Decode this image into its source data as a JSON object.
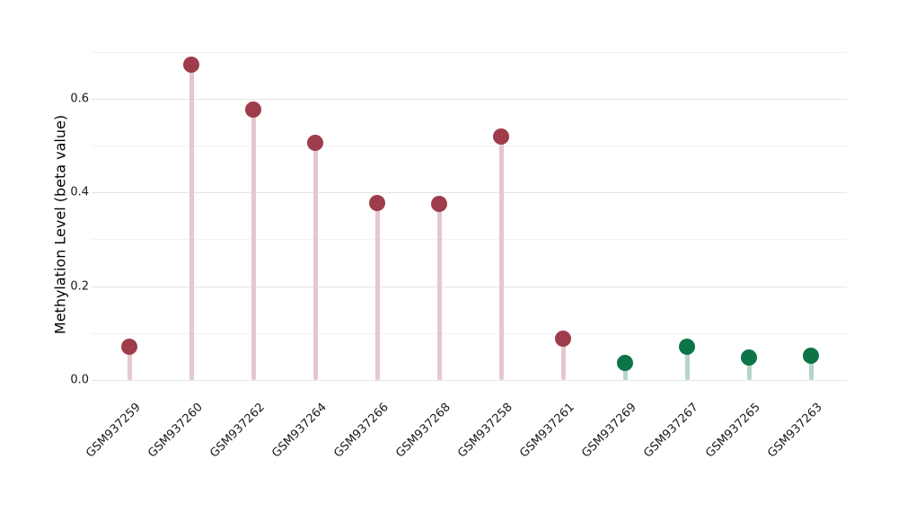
{
  "chart_data": {
    "type": "scatter",
    "style": "lollipop",
    "title": "",
    "xlabel": "",
    "ylabel": "Methylation Level (beta value)",
    "ylim": [
      0.0,
      0.72
    ],
    "ytick_labels": [
      "0.0",
      "0.2",
      "0.4",
      "0.6"
    ],
    "ytick_values": [
      0.0,
      0.2,
      0.4,
      0.6
    ],
    "gridline_values": [
      0.0,
      0.1,
      0.2,
      0.3,
      0.4,
      0.5,
      0.6,
      0.7
    ],
    "grid_on": true,
    "legend": "none",
    "categories": [
      "GSM937259",
      "GSM937260",
      "GSM937262",
      "GSM937264",
      "GSM937266",
      "GSM937268",
      "GSM937258",
      "GSM937261",
      "GSM937269",
      "GSM937267",
      "GSM937265",
      "GSM937263"
    ],
    "values": [
      0.07,
      0.672,
      0.577,
      0.505,
      0.378,
      0.375,
      0.52,
      0.089,
      0.037,
      0.071,
      0.048,
      0.051
    ],
    "point_groups": [
      "red",
      "red",
      "red",
      "red",
      "red",
      "red",
      "red",
      "red",
      "green",
      "green",
      "green",
      "green"
    ],
    "colors": {
      "red_dot": "#9e3c4b",
      "red_stem": "#e3c8cf",
      "green_dot": "#0c7446",
      "green_stem": "#b6d5c7",
      "major_grid": "#e5e5e5",
      "minor_grid": "#f2f2f2",
      "text": "#1a1a1a"
    }
  }
}
